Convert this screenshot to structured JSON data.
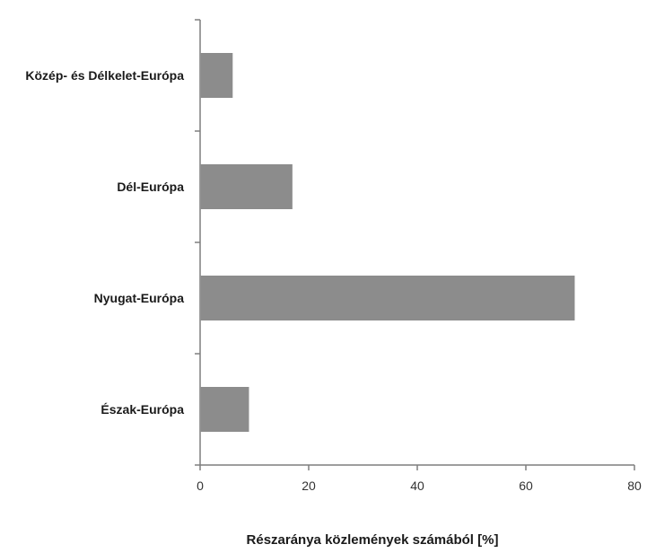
{
  "chart_data": {
    "type": "bar",
    "orientation": "horizontal",
    "categories": [
      "Közép- és Délkelet-Európa",
      "Dél-Európa",
      "Nyugat-Európa",
      "Észak-Európa"
    ],
    "values": [
      6,
      17,
      69,
      9
    ],
    "title": "",
    "xlabel": "Részaránya közlemények számából [%]",
    "ylabel": "",
    "xlim": [
      0,
      80
    ],
    "xticks": [
      0,
      20,
      40,
      60,
      80
    ],
    "grid": false,
    "legend": "none",
    "bar_color": "#8c8c8c"
  }
}
